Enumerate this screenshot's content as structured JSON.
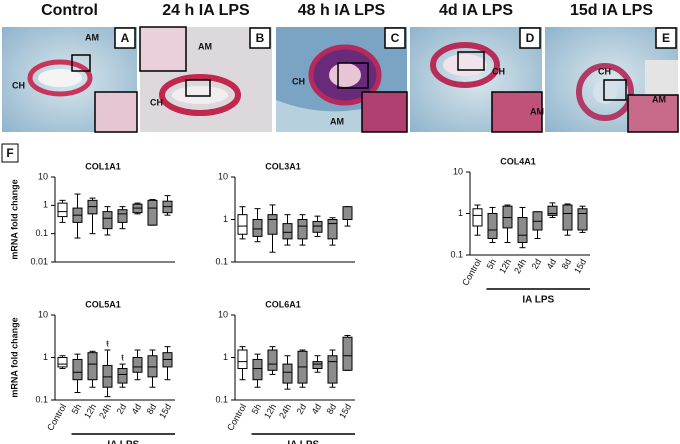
{
  "panels": [
    {
      "title": "Control",
      "letter": "A",
      "labels": [
        "AM",
        "CH"
      ]
    },
    {
      "title": "24 h IA LPS",
      "letter": "B",
      "labels": [
        "AM",
        "CH"
      ]
    },
    {
      "title": "48 h IA LPS",
      "letter": "C",
      "labels": [
        "CH",
        "AM"
      ]
    },
    {
      "title": "4d IA LPS",
      "letter": "D",
      "labels": [
        "CH",
        "AM"
      ]
    },
    {
      "title": "15d IA LPS",
      "letter": "E",
      "labels": [
        "CH",
        "AM"
      ]
    }
  ],
  "figure_label": "F",
  "chart_data": [
    {
      "type": "box",
      "title": "COL1A1",
      "ylabel": "mRNA fold change",
      "yscale": "log",
      "ylim": [
        0.01,
        10
      ],
      "yticks": [
        0.01,
        0.1,
        1,
        10
      ],
      "colors": [
        "#ffffff",
        "#8c8c8c",
        "#8c8c8c",
        "#8c8c8c",
        "#8c8c8c",
        "#8c8c8c",
        "#8c8c8c",
        "#8c8c8c"
      ],
      "boxes": [
        {
          "min": 0.25,
          "q1": 0.4,
          "median": 0.6,
          "q3": 1.2,
          "max": 1.5
        },
        {
          "min": 0.07,
          "q1": 0.25,
          "median": 0.45,
          "q3": 0.8,
          "max": 2.5
        },
        {
          "min": 0.1,
          "q1": 0.5,
          "median": 0.9,
          "q3": 1.5,
          "max": 1.8
        },
        {
          "min": 0.09,
          "q1": 0.15,
          "median": 0.35,
          "q3": 0.6,
          "max": 0.9
        },
        {
          "min": 0.15,
          "q1": 0.25,
          "median": 0.5,
          "q3": 0.7,
          "max": 0.9
        },
        {
          "min": 0.5,
          "q1": 0.55,
          "median": 0.8,
          "q3": 1.1,
          "max": 1.2
        },
        {
          "min": 0.2,
          "q1": 0.2,
          "median": 0.8,
          "q3": 1.5,
          "max": 1.6
        },
        {
          "min": 0.45,
          "q1": 0.55,
          "median": 0.9,
          "q3": 1.4,
          "max": 2.2
        }
      ]
    },
    {
      "type": "box",
      "title": "COL3A1",
      "yscale": "log",
      "ylim": [
        0.1,
        10
      ],
      "yticks": [
        0.1,
        1,
        10
      ],
      "colors": [
        "#ffffff",
        "#8c8c8c",
        "#8c8c8c",
        "#8c8c8c",
        "#8c8c8c",
        "#8c8c8c",
        "#8c8c8c",
        "#8c8c8c"
      ],
      "boxes": [
        {
          "min": 0.35,
          "q1": 0.45,
          "median": 0.7,
          "q3": 1.3,
          "max": 2
        },
        {
          "min": 0.3,
          "q1": 0.4,
          "median": 0.6,
          "q3": 1.0,
          "max": 1.8
        },
        {
          "min": 0.17,
          "q1": 0.45,
          "median": 1.0,
          "q3": 1.3,
          "max": 2.2
        },
        {
          "min": 0.25,
          "q1": 0.35,
          "median": 0.5,
          "q3": 0.8,
          "max": 1.3
        },
        {
          "min": 0.25,
          "q1": 0.35,
          "median": 0.7,
          "q3": 1.0,
          "max": 1.3
        },
        {
          "min": 0.4,
          "q1": 0.5,
          "median": 0.7,
          "q3": 0.9,
          "max": 1.2
        },
        {
          "min": 0.25,
          "q1": 0.35,
          "median": 0.8,
          "q3": 1.0,
          "max": 1.1
        },
        {
          "min": 0.7,
          "q1": 1.0,
          "median": 1.0,
          "q3": 2.0,
          "max": 2.0
        }
      ]
    },
    {
      "type": "box",
      "title": "COL4A1",
      "yscale": "log",
      "ylim": [
        0.1,
        10
      ],
      "yticks": [
        0.1,
        1,
        10
      ],
      "categories": [
        "Control",
        "5h",
        "12h",
        "24h",
        "2d",
        "4d",
        "8d",
        "15d"
      ],
      "xlabel": "IA LPS",
      "colors": [
        "#ffffff",
        "#8c8c8c",
        "#8c8c8c",
        "#8c8c8c",
        "#8c8c8c",
        "#8c8c8c",
        "#8c8c8c",
        "#8c8c8c"
      ],
      "boxes": [
        {
          "min": 0.3,
          "q1": 0.5,
          "median": 0.9,
          "q3": 1.3,
          "max": 1.6
        },
        {
          "min": 0.2,
          "q1": 0.25,
          "median": 0.4,
          "q3": 1.0,
          "max": 1.4
        },
        {
          "min": 0.2,
          "q1": 0.45,
          "median": 0.8,
          "q3": 1.5,
          "max": 1.6
        },
        {
          "min": 0.15,
          "q1": 0.2,
          "median": 0.3,
          "q3": 0.8,
          "max": 1.4
        },
        {
          "min": 0.25,
          "q1": 0.4,
          "median": 0.65,
          "q3": 1.1,
          "max": 1.1
        },
        {
          "min": 0.8,
          "q1": 0.9,
          "median": 1.0,
          "q3": 1.5,
          "max": 1.8
        },
        {
          "min": 0.3,
          "q1": 0.4,
          "median": 1.0,
          "q3": 1.6,
          "max": 1.7
        },
        {
          "min": 0.35,
          "q1": 0.4,
          "median": 1.0,
          "q3": 1.3,
          "max": 1.5
        }
      ]
    },
    {
      "type": "box",
      "title": "COL5A1",
      "ylabel": "mRNA fold change",
      "yscale": "log",
      "ylim": [
        0.1,
        10
      ],
      "yticks": [
        0.1,
        1,
        10
      ],
      "categories": [
        "Control",
        "5h",
        "12h",
        "24h",
        "2d",
        "4d",
        "8d",
        "15d"
      ],
      "xlabel": "IA LPS",
      "annotations": {
        "24h": "ŧ",
        "2d": "ŧ"
      },
      "colors": [
        "#ffffff",
        "#8c8c8c",
        "#8c8c8c",
        "#8c8c8c",
        "#8c8c8c",
        "#8c8c8c",
        "#8c8c8c",
        "#8c8c8c"
      ],
      "boxes": [
        {
          "min": 0.55,
          "q1": 0.6,
          "median": 0.7,
          "q3": 1.0,
          "max": 1.1
        },
        {
          "min": 0.15,
          "q1": 0.3,
          "median": 0.45,
          "q3": 0.9,
          "max": 1.2
        },
        {
          "min": 0.2,
          "q1": 0.3,
          "median": 0.7,
          "q3": 1.3,
          "max": 1.4
        },
        {
          "min": 0.12,
          "q1": 0.2,
          "median": 0.35,
          "q3": 0.65,
          "max": 1.5
        },
        {
          "min": 0.2,
          "q1": 0.25,
          "median": 0.4,
          "q3": 0.55,
          "max": 0.7
        },
        {
          "min": 0.3,
          "q1": 0.45,
          "median": 0.6,
          "q3": 1.0,
          "max": 1.5
        },
        {
          "min": 0.2,
          "q1": 0.35,
          "median": 0.6,
          "q3": 1.1,
          "max": 1.5
        },
        {
          "min": 0.3,
          "q1": 0.6,
          "median": 0.9,
          "q3": 1.3,
          "max": 1.8
        }
      ]
    },
    {
      "type": "box",
      "title": "COL6A1",
      "yscale": "log",
      "ylim": [
        0.1,
        10
      ],
      "yticks": [
        0.1,
        1,
        10
      ],
      "categories": [
        "Control",
        "5h",
        "12h",
        "24h",
        "2d",
        "4d",
        "8d",
        "15d"
      ],
      "xlabel": "IA LPS",
      "colors": [
        "#ffffff",
        "#8c8c8c",
        "#8c8c8c",
        "#8c8c8c",
        "#8c8c8c",
        "#8c8c8c",
        "#8c8c8c",
        "#8c8c8c"
      ],
      "boxes": [
        {
          "min": 0.3,
          "q1": 0.55,
          "median": 0.8,
          "q3": 1.5,
          "max": 1.8
        },
        {
          "min": 0.2,
          "q1": 0.3,
          "median": 0.55,
          "q3": 0.9,
          "max": 1.2
        },
        {
          "min": 0.4,
          "q1": 0.5,
          "median": 0.7,
          "q3": 1.5,
          "max": 1.8
        },
        {
          "min": 0.18,
          "q1": 0.25,
          "median": 0.45,
          "q3": 0.7,
          "max": 1.1
        },
        {
          "min": 0.2,
          "q1": 0.25,
          "median": 0.6,
          "q3": 1.4,
          "max": 1.5
        },
        {
          "min": 0.45,
          "q1": 0.55,
          "median": 0.7,
          "q3": 0.8,
          "max": 1.1
        },
        {
          "min": 0.2,
          "q1": 0.25,
          "median": 0.8,
          "q3": 1.1,
          "max": 1.5
        },
        {
          "min": 0.5,
          "q1": 0.5,
          "median": 1.1,
          "q3": 3.0,
          "max": 3.3
        }
      ]
    }
  ]
}
